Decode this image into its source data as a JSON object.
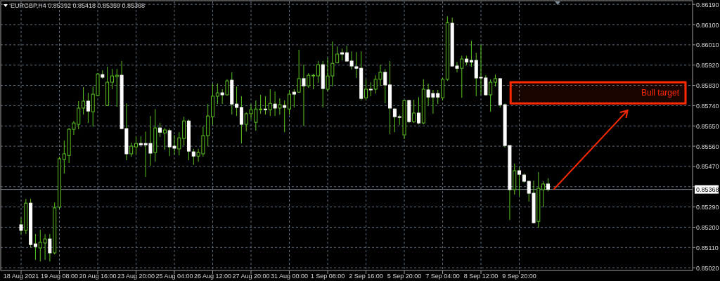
{
  "chart_data": {
    "type": "candlestick",
    "title": "EURGBP,H4  0.85392 0.85418 0.85359 0.85368",
    "color": "#5bc21e",
    "grid": true,
    "colors": [
      "#ffffff",
      "#5bc21e",
      "#ffffff",
      "#ffffff",
      "#5bc21e",
      "#5bc21e",
      "#ffffff",
      "#5bc21e",
      "#5bc21e",
      "#5bc21e",
      "#5bc21e",
      "#5bc21e",
      "#5bc21e",
      "#5bc21e",
      "#ffffff",
      "#5bc21e",
      "#5bc21e",
      "#ffffff",
      "#5bc21e",
      "#5bc21e",
      "#5bc21e",
      "#ffffff",
      "#ffffff",
      "#5bc21e",
      "#5bc21e",
      "#ffffff",
      "#ffffff",
      "#ffffff",
      "#5bc21e",
      "#ffffff",
      "#5bc21e",
      "#ffffff",
      "#ffffff",
      "#5bc21e",
      "#5bc21e",
      "#ffffff",
      "#ffffff",
      "#5bc21e",
      "#5bc21e",
      "#5bc21e",
      "#5bc21e",
      "#5bc21e",
      "#ffffff",
      "#5bc21e",
      "#ffffff",
      "#ffffff",
      "#ffffff",
      "#5bc21e",
      "#5bc21e",
      "#5bc21e",
      "#5bc21e",
      "#ffffff",
      "#5bc21e",
      "#ffffff",
      "#5bc21e",
      "#ffffff",
      "#5bc21e",
      "#ffffff",
      "#5bc21e",
      "#ffffff",
      "#5bc21e",
      "#5bc21e",
      "#5bc21e",
      "#ffffff",
      "#5bc21e",
      "#5bc21e",
      "#5bc21e",
      "#ffffff",
      "#ffffff",
      "#ffffff",
      "#ffffff",
      "#ffffff",
      "#5bc21e",
      "#ffffff",
      "#5bc21e",
      "#5bc21e",
      "#ffffff",
      "#ffffff",
      "#ffffff",
      "#ffffff",
      "#5bc21e",
      "#ffffff",
      "#5bc21e",
      "#ffffff",
      "#5bc21e",
      "#ffffff",
      "#ffffff",
      "#ffffff",
      "#5bc21e",
      "#5bc21e",
      "#ffffff",
      "#ffffff",
      "#5bc21e",
      "#ffffff",
      "#ffffff",
      "#ffffff",
      "#ffffff",
      "#ffffff",
      "#5bc21e",
      "#5bc21e",
      "#ffffff",
      "#ffffff",
      "#ffffff",
      "#5bc21e",
      "#ffffff",
      "#ffffff",
      "#ffffff",
      "#ffffff",
      "#5bc21e",
      "#5bc21e",
      "#ffffff",
      null,
      null,
      null,
      null,
      null,
      null,
      null,
      null,
      null,
      null,
      null,
      null,
      null,
      null,
      null,
      null,
      null,
      null,
      null,
      null,
      null,
      null,
      null,
      null,
      null,
      null,
      null,
      null,
      null
    ],
    "categories": [
      "18 Aug 2021",
      null,
      null,
      null,
      null,
      null,
      null,
      null,
      "19 Aug 08:00",
      null,
      null,
      null,
      null,
      null,
      null,
      null,
      "20 Aug 16:00",
      null,
      null,
      null,
      null,
      null,
      null,
      null,
      "23 Aug 20:00",
      null,
      null,
      null,
      null,
      null,
      null,
      null,
      "25 Aug 04:00",
      null,
      null,
      null,
      null,
      null,
      null,
      null,
      "26 Aug 12:00",
      null,
      null,
      null,
      null,
      null,
      null,
      null,
      "27 Aug 20:00",
      null,
      null,
      null,
      null,
      null,
      null,
      null,
      "31 Aug 00:00",
      null,
      null,
      null,
      null,
      null,
      null,
      null,
      "1 Sep 08:00",
      null,
      null,
      null,
      null,
      null,
      null,
      null,
      "2 Sep 16:00",
      null,
      null,
      null,
      null,
      null,
      null,
      null,
      "5 Sep 20:00",
      null,
      null,
      null,
      null,
      null,
      null,
      null,
      "7 Sep 04:00",
      null,
      null,
      null,
      null,
      null,
      null,
      null,
      "8 Sep 12:00",
      null,
      null,
      null,
      null,
      null,
      null,
      null,
      "9 Sep 20:00",
      null,
      null,
      null,
      null,
      null,
      null,
      null,
      null,
      null,
      null,
      null,
      null,
      null,
      null,
      null,
      null,
      null,
      null,
      null,
      null,
      null,
      null,
      null,
      null,
      null,
      null,
      null,
      null,
      null,
      null,
      null,
      null,
      null,
      null,
      null
    ],
    "ohlc": [
      [
        0.85211,
        0.85242,
        0.8517,
        0.85186
      ],
      [
        0.85186,
        0.85326,
        0.8517,
        0.85307
      ],
      [
        0.85307,
        0.85326,
        0.85111,
        0.85123
      ],
      [
        0.85126,
        0.8517,
        0.85055,
        0.85114
      ],
      [
        0.85108,
        0.85189,
        0.85048,
        0.85133
      ],
      [
        0.8513,
        0.8517,
        0.85055,
        0.85148
      ],
      [
        0.85148,
        0.8517,
        0.85048,
        0.85086
      ],
      [
        0.85086,
        0.8531,
        0.8508,
        0.85286
      ],
      [
        0.85289,
        0.85513,
        0.85282,
        0.85504
      ],
      [
        0.85501,
        0.85585,
        0.85438,
        0.85526
      ],
      [
        0.85519,
        0.85641,
        0.85485,
        0.85635
      ],
      [
        0.85635,
        0.85672,
        0.8561,
        0.85663
      ],
      [
        0.85657,
        0.8576,
        0.85635,
        0.85729
      ],
      [
        0.85729,
        0.85822,
        0.857,
        0.8576
      ],
      [
        0.8576,
        0.85797,
        0.85663,
        0.85716
      ],
      [
        0.85713,
        0.85825,
        0.85647,
        0.85791
      ],
      [
        0.85785,
        0.85884,
        0.85782,
        0.85881
      ],
      [
        0.85878,
        0.85897,
        0.8586,
        0.85866
      ],
      [
        0.85741,
        0.85913,
        0.85738,
        0.85844
      ],
      [
        0.85844,
        0.85903,
        0.85813,
        0.85872
      ],
      [
        0.85869,
        0.85903,
        0.85735,
        0.85875
      ],
      [
        0.85875,
        0.85938,
        0.85635,
        0.85638
      ],
      [
        0.85638,
        0.8575,
        0.85498,
        0.85526
      ],
      [
        0.85526,
        0.85576,
        0.85513,
        0.8556
      ],
      [
        0.85557,
        0.85604,
        0.85523,
        0.85572
      ],
      [
        0.85572,
        0.85604,
        0.85563,
        0.85566
      ],
      [
        0.85572,
        0.85625,
        0.85423,
        0.85566
      ],
      [
        0.85572,
        0.85694,
        0.85473,
        0.85529
      ],
      [
        0.85532,
        0.85725,
        0.85491,
        0.85641
      ],
      [
        0.85641,
        0.85663,
        0.85601,
        0.85622
      ],
      [
        0.85619,
        0.85641,
        0.85544,
        0.85632
      ],
      [
        0.85629,
        0.85638,
        0.85516,
        0.85557
      ],
      [
        0.8556,
        0.8561,
        0.85523,
        0.85551
      ],
      [
        0.85548,
        0.85622,
        0.85519,
        0.85597
      ],
      [
        0.85594,
        0.85691,
        0.85563,
        0.85672
      ],
      [
        0.85672,
        0.85679,
        0.85498,
        0.85538
      ],
      [
        0.85535,
        0.85548,
        0.85477,
        0.85516
      ],
      [
        0.85516,
        0.85548,
        0.85491,
        0.85532
      ],
      [
        0.85526,
        0.85647,
        0.85513,
        0.85607
      ],
      [
        0.85607,
        0.85747,
        0.8556,
        0.85694
      ],
      [
        0.85691,
        0.85838,
        0.85654,
        0.85782
      ],
      [
        0.85782,
        0.85838,
        0.85747,
        0.85797
      ],
      [
        0.85797,
        0.85813,
        0.85747,
        0.85788
      ],
      [
        0.85788,
        0.85857,
        0.85785,
        0.8585
      ],
      [
        0.85853,
        0.85888,
        0.857,
        0.85747
      ],
      [
        0.85747,
        0.85825,
        0.85694,
        0.85732
      ],
      [
        0.85732,
        0.85782,
        0.85572,
        0.85657
      ],
      [
        0.85657,
        0.8571,
        0.85625,
        0.85704
      ],
      [
        0.85704,
        0.85747,
        0.85679,
        0.85722
      ],
      [
        0.85666,
        0.85763,
        0.85629,
        0.85725
      ],
      [
        0.85722,
        0.85788,
        0.85704,
        0.85725
      ],
      [
        0.85725,
        0.85782,
        0.857,
        0.85722
      ],
      [
        0.85722,
        0.85813,
        0.85694,
        0.8575
      ],
      [
        0.85747,
        0.85803,
        0.85694,
        0.85729
      ],
      [
        0.85729,
        0.85772,
        0.857,
        0.85744
      ],
      [
        0.85741,
        0.85763,
        0.85622,
        0.85732
      ],
      [
        0.85725,
        0.8581,
        0.857,
        0.85791
      ],
      [
        0.858,
        0.85813,
        0.85732,
        0.85791
      ],
      [
        0.858,
        0.85988,
        0.85797,
        0.8586
      ],
      [
        0.8586,
        0.85922,
        0.8565,
        0.85828
      ],
      [
        0.85828,
        0.85884,
        0.85819,
        0.85875
      ],
      [
        0.85872,
        0.85881,
        0.85813,
        0.85875
      ],
      [
        0.85872,
        0.85938,
        0.85841,
        0.85922
      ],
      [
        0.85922,
        0.85938,
        0.85732,
        0.85816
      ],
      [
        0.85813,
        0.85953,
        0.85803,
        0.85872
      ],
      [
        0.85872,
        0.86025,
        0.85825,
        0.85928
      ],
      [
        0.85931,
        0.86003,
        0.85928,
        0.85969
      ],
      [
        0.85975,
        0.85994,
        0.85941,
        0.85969
      ],
      [
        0.85975,
        0.86006,
        0.85934,
        0.85938
      ],
      [
        0.85938,
        0.85981,
        0.859,
        0.85916
      ],
      [
        0.85913,
        0.85978,
        0.85863,
        0.85906
      ],
      [
        0.85906,
        0.85981,
        0.85763,
        0.85772
      ],
      [
        0.85775,
        0.85857,
        0.85763,
        0.85813
      ],
      [
        0.85813,
        0.85844,
        0.85782,
        0.8581
      ],
      [
        0.85813,
        0.85875,
        0.85794,
        0.85857
      ],
      [
        0.85857,
        0.85922,
        0.85828,
        0.85888
      ],
      [
        0.85888,
        0.85903,
        0.8575,
        0.85832
      ],
      [
        0.85832,
        0.85938,
        0.85613,
        0.85729
      ],
      [
        0.85725,
        0.85729,
        0.85622,
        0.85691
      ],
      [
        0.85691,
        0.857,
        0.85654,
        0.85688
      ],
      [
        0.8561,
        0.85766,
        0.85591,
        0.85763
      ],
      [
        0.85763,
        0.85766,
        0.85663,
        0.85669
      ],
      [
        0.85669,
        0.85766,
        0.85663,
        0.85707
      ],
      [
        0.85707,
        0.85778,
        0.85657,
        0.85663
      ],
      [
        0.85663,
        0.85857,
        0.85657,
        0.85813
      ],
      [
        0.8581,
        0.85838,
        0.85741,
        0.85778
      ],
      [
        0.85794,
        0.8581,
        0.85704,
        0.85778
      ],
      [
        0.85794,
        0.8581,
        0.85747,
        0.85778
      ],
      [
        0.85775,
        0.85866,
        0.85763,
        0.85857
      ],
      [
        0.85857,
        0.86137,
        0.8585,
        0.86109
      ],
      [
        0.86106,
        0.86131,
        0.85913,
        0.85916
      ],
      [
        0.85916,
        0.85934,
        0.85888,
        0.85906
      ],
      [
        0.85906,
        0.85962,
        0.85775,
        0.85947
      ],
      [
        0.85947,
        0.85962,
        0.85919,
        0.85934
      ],
      [
        0.85941,
        0.86028,
        0.85913,
        0.85934
      ],
      [
        0.85941,
        0.85975,
        0.85782,
        0.85863
      ],
      [
        0.85866,
        0.86012,
        0.85788,
        0.85863
      ],
      [
        0.85863,
        0.85875,
        0.85785,
        0.85788
      ],
      [
        0.85788,
        0.85857,
        0.85713,
        0.85844
      ],
      [
        0.85844,
        0.85878,
        0.85825,
        0.8586
      ],
      [
        0.8586,
        0.8586,
        0.85732,
        0.85744
      ],
      [
        0.85744,
        0.8575,
        0.85554,
        0.85563
      ],
      [
        0.85563,
        0.85563,
        0.85233,
        0.85367
      ],
      [
        0.85367,
        0.85482,
        0.85345,
        0.85451
      ],
      [
        0.85451,
        0.85467,
        0.85339,
        0.85435
      ],
      [
        0.85432,
        0.85438,
        0.85398,
        0.85404
      ],
      [
        0.85404,
        0.85407,
        0.85314,
        0.85351
      ],
      [
        0.85351,
        0.85407,
        0.85217,
        0.8522
      ],
      [
        0.85226,
        0.85445,
        0.85198,
        0.85373
      ],
      [
        0.85367,
        0.85404,
        0.85289,
        0.85392
      ],
      [
        0.85392,
        0.85418,
        0.85359,
        0.85368
      ],
      null,
      null,
      null,
      null,
      null,
      null,
      null,
      null,
      null,
      null,
      null,
      null,
      null,
      null,
      null,
      null,
      null,
      null,
      null,
      null,
      null,
      null,
      null,
      null,
      null,
      null,
      null,
      null,
      null
    ],
    "ylim": [
      0.85008,
      0.86203
    ],
    "yticks": [
      {
        "value": 0.8619,
        "label": "0.86190"
      },
      {
        "value": 0.861,
        "label": "0.86100"
      },
      {
        "value": 0.8601,
        "label": "0.86010"
      },
      {
        "value": 0.8592,
        "label": "0.85920"
      },
      {
        "value": 0.8583,
        "label": "0.85830"
      },
      {
        "value": 0.8574,
        "label": "0.85740"
      },
      {
        "value": 0.8565,
        "label": "0.85650"
      },
      {
        "value": 0.8556,
        "label": "0.85560"
      },
      {
        "value": 0.8547,
        "label": "0.85470"
      },
      {
        "value": 0.8538,
        "label": null
      },
      {
        "value": 0.8529,
        "label": "0.85290"
      },
      {
        "value": 0.852,
        "label": "0.85200"
      },
      {
        "value": 0.8511,
        "label": "0.85110"
      },
      {
        "value": 0.8502,
        "label": "0.85020"
      }
    ],
    "bands": [
      {
        "axis": "y",
        "from": 0.8575,
        "to": 0.85844,
        "label": "Bull target",
        "color": "#ff2a00"
      }
    ],
    "ref_lines": [
      {
        "axis": "y",
        "value": 0.85368,
        "label": "0.85368",
        "color": "#7a8896"
      }
    ]
  }
}
